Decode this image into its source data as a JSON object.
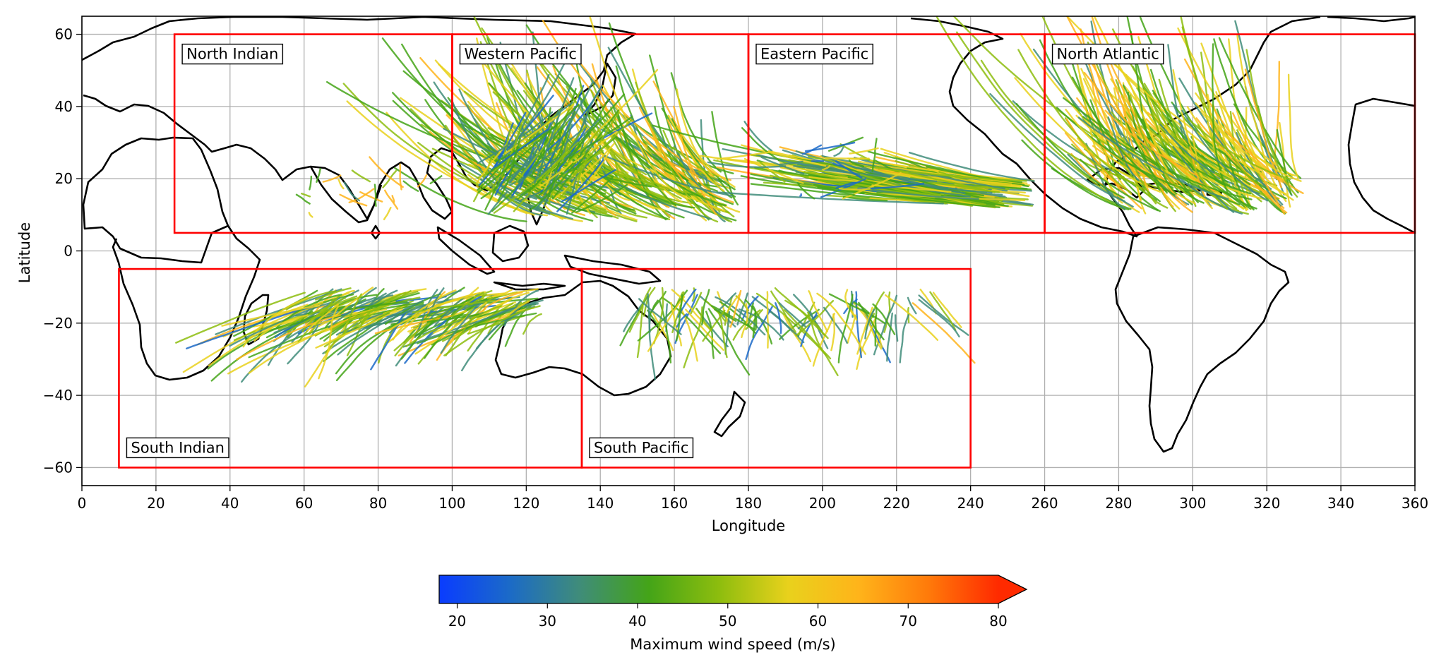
{
  "chart_data": {
    "type": "map",
    "xlabel": "Longitude",
    "ylabel": "Latitude",
    "xlim": [
      0,
      360
    ],
    "ylim": [
      -65,
      65
    ],
    "xticks": [
      "0",
      "20",
      "40",
      "60",
      "80",
      "100",
      "120",
      "140",
      "160",
      "180",
      "200",
      "220",
      "240",
      "260",
      "280",
      "300",
      "320",
      "340",
      "360"
    ],
    "yticks": [
      "60",
      "40",
      "20",
      "0",
      "−20",
      "−40",
      "−60"
    ],
    "grid": true,
    "regions": [
      {
        "name": "North Indian",
        "lon": [
          25,
          100
        ],
        "lat": [
          5,
          60
        ]
      },
      {
        "name": "Western Pacific",
        "lon": [
          100,
          180
        ],
        "lat": [
          5,
          60
        ]
      },
      {
        "name": "Eastern Pacific",
        "lon": [
          180,
          260
        ],
        "lat": [
          5,
          60
        ]
      },
      {
        "name": "North Atlantic",
        "lon": [
          260,
          360
        ],
        "lat": [
          5,
          60
        ]
      },
      {
        "name": "South Indian",
        "lon": [
          10,
          135
        ],
        "lat": [
          -60,
          -5
        ]
      },
      {
        "name": "South Pacific",
        "lon": [
          135,
          240
        ],
        "lat": [
          -60,
          -5
        ]
      }
    ],
    "colorbar": {
      "label": "Maximum wind speed (m/s)",
      "range": [
        18,
        80
      ],
      "ticks": [
        "20",
        "30",
        "40",
        "50",
        "60",
        "70",
        "80"
      ],
      "extend": "max",
      "colors": [
        "#0a3cff",
        "#1b6ac8",
        "#3f8c7a",
        "#44a418",
        "#8dbd0e",
        "#e9d11c",
        "#ffb41a",
        "#ff7a0a",
        "#ff2a00"
      ]
    }
  }
}
